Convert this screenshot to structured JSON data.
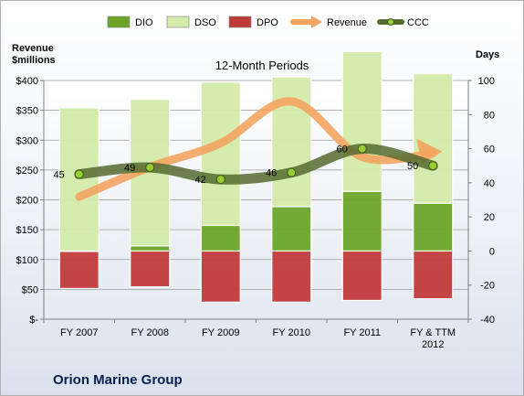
{
  "company": "Orion Marine Group",
  "chart_data": {
    "type": "bar",
    "title": "12-Month Periods",
    "left_axis_label": [
      "Revenue",
      "$millions"
    ],
    "right_axis_label": "Days",
    "categories": [
      [
        "FY 2007"
      ],
      [
        "FY 2008"
      ],
      [
        "FY 2009"
      ],
      [
        "FY 2010"
      ],
      [
        "FY 2011"
      ],
      [
        "FY & TTM",
        "2012"
      ]
    ],
    "left_ticks": [
      "$-",
      "$50",
      "$100",
      "$150",
      "$200",
      "$250",
      "$300",
      "$350",
      "$400"
    ],
    "left_range": [
      0,
      400
    ],
    "right_ticks": [
      "-40",
      "-20",
      "0",
      "20",
      "40",
      "60",
      "80",
      "100"
    ],
    "right_range": [
      -40,
      100
    ],
    "series": [
      {
        "name": "DIO",
        "axis": "right",
        "color": "#6aa52a",
        "values": [
          0,
          3,
          15,
          26,
          35,
          28
        ]
      },
      {
        "name": "DSO",
        "axis": "right",
        "color": "#d3ebaa",
        "values": [
          84,
          86,
          84,
          76,
          82,
          76
        ]
      },
      {
        "name": "DPO",
        "axis": "right",
        "color": "#c23b3b",
        "values": [
          -22,
          -21,
          -30,
          -30,
          -29,
          -28
        ]
      },
      {
        "name": "Revenue",
        "axis": "left",
        "color": "#f4a460",
        "values": [
          205,
          255,
          295,
          365,
          272,
          278
        ]
      },
      {
        "name": "CCC",
        "axis": "right",
        "color": "#556b2f",
        "values": [
          45,
          49,
          42,
          46,
          60,
          50
        ]
      }
    ],
    "ccc_labels": [
      "45",
      "49",
      "42",
      "46",
      "60",
      "50"
    ],
    "legend_position": "top",
    "grid": true
  }
}
